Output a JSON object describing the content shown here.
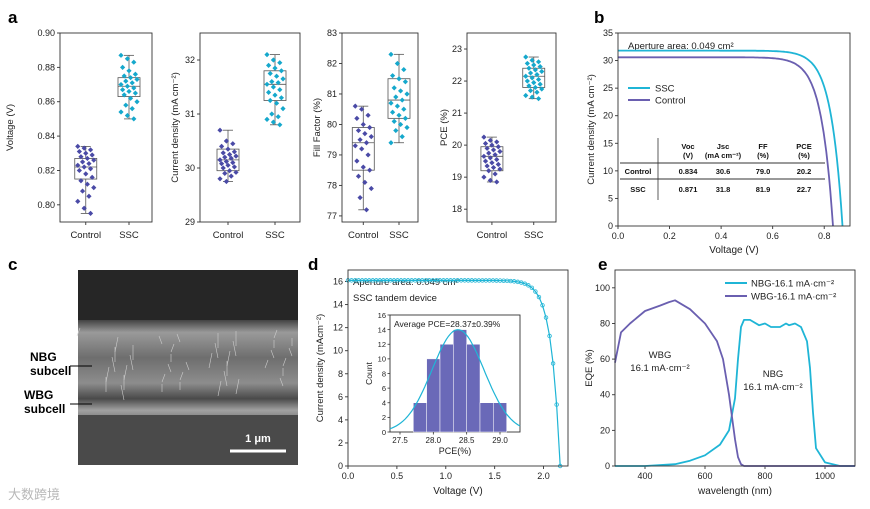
{
  "panel_labels": {
    "a": "a",
    "b": "b",
    "c": "c",
    "d": "d",
    "e": "e"
  },
  "watermark": "大数跨境",
  "chart_data": [
    {
      "id": "a1",
      "type": "box",
      "ylabel": "Voltage (V)",
      "categories": [
        "Control",
        "SSC"
      ],
      "ylim": [
        0.79,
        0.9
      ],
      "yticks": [
        0.8,
        0.82,
        0.84,
        0.86,
        0.88,
        0.9
      ],
      "ytick_labels": [
        "0.80",
        "0.82",
        "0.84",
        "0.86",
        "0.88",
        "0.90"
      ],
      "boxes": [
        {
          "q1": 0.815,
          "median": 0.822,
          "q3": 0.827,
          "wlo": 0.795,
          "whi": 0.834
        },
        {
          "q1": 0.863,
          "median": 0.869,
          "q3": 0.874,
          "wlo": 0.85,
          "whi": 0.887
        }
      ],
      "points": [
        [
          0.834,
          0.833,
          0.832,
          0.831,
          0.83,
          0.829,
          0.828,
          0.827,
          0.826,
          0.825,
          0.824,
          0.823,
          0.822,
          0.821,
          0.82,
          0.818,
          0.816,
          0.814,
          0.812,
          0.81,
          0.808,
          0.805,
          0.802,
          0.798,
          0.795
        ],
        [
          0.887,
          0.885,
          0.883,
          0.88,
          0.878,
          0.876,
          0.875,
          0.874,
          0.873,
          0.872,
          0.871,
          0.87,
          0.869,
          0.868,
          0.867,
          0.866,
          0.865,
          0.864,
          0.862,
          0.86,
          0.858,
          0.856,
          0.854,
          0.852,
          0.85
        ]
      ]
    },
    {
      "id": "a2",
      "type": "box",
      "ylabel": "Current density (mA cm⁻²)",
      "categories": [
        "Control",
        "SSC"
      ],
      "ylim": [
        29,
        32.5
      ],
      "yticks": [
        29,
        30,
        31,
        32
      ],
      "ytick_labels": [
        "29",
        "30",
        "31",
        "32"
      ],
      "boxes": [
        {
          "q1": 29.95,
          "median": 30.15,
          "q3": 30.35,
          "wlo": 29.75,
          "whi": 30.7
        },
        {
          "q1": 31.25,
          "median": 31.55,
          "q3": 31.8,
          "wlo": 30.8,
          "whi": 32.1
        }
      ],
      "points": [
        [
          30.7,
          30.5,
          30.45,
          30.4,
          30.35,
          30.3,
          30.28,
          30.25,
          30.22,
          30.2,
          30.18,
          30.15,
          30.12,
          30.1,
          30.08,
          30.05,
          30.02,
          30.0,
          29.95,
          29.92,
          29.9,
          29.85,
          29.8,
          29.75
        ],
        [
          32.1,
          32.0,
          31.95,
          31.9,
          31.85,
          31.8,
          31.75,
          31.7,
          31.65,
          31.6,
          31.58,
          31.55,
          31.5,
          31.45,
          31.4,
          31.35,
          31.3,
          31.25,
          31.2,
          31.1,
          31.0,
          30.95,
          30.9,
          30.85,
          30.8
        ]
      ]
    },
    {
      "id": "a3",
      "type": "box",
      "ylabel": "Fill Factor (%)",
      "categories": [
        "Control",
        "SSC"
      ],
      "ylim": [
        76.8,
        83
      ],
      "yticks": [
        77,
        78,
        79,
        80,
        81,
        82,
        83
      ],
      "ytick_labels": [
        "77",
        "78",
        "79",
        "80",
        "81",
        "82",
        "83"
      ],
      "boxes": [
        {
          "q1": 78.5,
          "median": 79.4,
          "q3": 79.9,
          "wlo": 77.2,
          "whi": 80.6
        },
        {
          "q1": 80.2,
          "median": 80.8,
          "q3": 81.5,
          "wlo": 79.4,
          "whi": 82.3
        }
      ],
      "points": [
        [
          80.6,
          80.5,
          80.3,
          80.2,
          80.0,
          79.9,
          79.8,
          79.7,
          79.6,
          79.5,
          79.4,
          79.3,
          79.2,
          79.0,
          78.8,
          78.6,
          78.5,
          78.3,
          78.1,
          77.9,
          77.6,
          77.2
        ],
        [
          82.3,
          82.0,
          81.8,
          81.6,
          81.5,
          81.4,
          81.2,
          81.1,
          81.0,
          80.9,
          80.8,
          80.7,
          80.6,
          80.5,
          80.4,
          80.3,
          80.2,
          80.1,
          80.0,
          79.9,
          79.8,
          79.6,
          79.4
        ]
      ]
    },
    {
      "id": "a4",
      "type": "box",
      "ylabel": "PCE (%)",
      "categories": [
        "Control",
        "SSC"
      ],
      "ylim": [
        17.6,
        23.5
      ],
      "yticks": [
        18,
        19,
        20,
        21,
        22,
        23
      ],
      "ytick_labels": [
        "18",
        "19",
        "20",
        "21",
        "22",
        "23"
      ],
      "boxes": [
        {
          "q1": 19.2,
          "median": 19.65,
          "q3": 19.95,
          "wlo": 18.85,
          "whi": 20.25
        },
        {
          "q1": 21.8,
          "median": 22.15,
          "q3": 22.4,
          "wlo": 21.45,
          "whi": 22.75
        }
      ],
      "points": [
        [
          20.25,
          20.15,
          20.1,
          20.05,
          20.0,
          19.95,
          19.9,
          19.85,
          19.8,
          19.75,
          19.7,
          19.65,
          19.6,
          19.55,
          19.5,
          19.45,
          19.4,
          19.35,
          19.3,
          19.25,
          19.2,
          19.1,
          19.0,
          18.9,
          18.85
        ],
        [
          22.75,
          22.65,
          22.6,
          22.55,
          22.5,
          22.45,
          22.4,
          22.35,
          22.3,
          22.25,
          22.2,
          22.15,
          22.1,
          22.05,
          22.0,
          21.95,
          21.9,
          21.85,
          21.8,
          21.75,
          21.7,
          21.65,
          21.55,
          21.5,
          21.45
        ]
      ]
    },
    {
      "id": "b",
      "type": "line",
      "xlabel": "Voltage (V)",
      "ylabel": "Current density (mA cm⁻²)",
      "xlim": [
        0,
        0.9
      ],
      "ylim": [
        0,
        35
      ],
      "xticks": [
        0.0,
        0.2,
        0.4,
        0.6,
        0.8
      ],
      "xtick_labels": [
        "0.0",
        "0.2",
        "0.4",
        "0.6",
        "0.8"
      ],
      "yticks": [
        0,
        5,
        10,
        15,
        20,
        25,
        30,
        35
      ],
      "ytick_labels": [
        "0",
        "5",
        "10",
        "15",
        "20",
        "25",
        "30",
        "35"
      ],
      "annotation": "Aperture area: 0.049 cm²",
      "series": [
        {
          "name": "SSC",
          "color": "#1fb5d6",
          "jsc": 31.8,
          "voc": 0.871
        },
        {
          "name": "Control",
          "color": "#6a5fb0",
          "jsc": 30.6,
          "voc": 0.834
        }
      ],
      "table": {
        "headers": [
          "",
          "Voc\n(V)",
          "Jsc\n(mA cm⁻²)",
          "FF\n(%)",
          "PCE\n(%)"
        ],
        "rows": [
          [
            "Control",
            "0.834",
            "30.6",
            "79.0",
            "20.2"
          ],
          [
            "SSC",
            "0.871",
            "31.8",
            "81.9",
            "22.7"
          ]
        ]
      }
    },
    {
      "id": "d",
      "type": "line",
      "xlabel": "Voltage (V)",
      "ylabel": "Current density (mAcm⁻²)",
      "xlim": [
        0,
        2.25
      ],
      "ylim": [
        0,
        17
      ],
      "xticks": [
        0.0,
        0.5,
        1.0,
        1.5,
        2.0
      ],
      "xtick_labels": [
        "0.0",
        "0.5",
        "1.0",
        "1.5",
        "2.0"
      ],
      "yticks": [
        0,
        2,
        4,
        6,
        8,
        10,
        12,
        14,
        16
      ],
      "ytick_labels": [
        "0",
        "2",
        "4",
        "6",
        "8",
        "10",
        "12",
        "14",
        "16"
      ],
      "annotations": [
        "Aperture area: 0.049 cm²",
        "SSC tandem device"
      ],
      "series": [
        {
          "name": "SSC tandem",
          "color": "#1fb5d6",
          "jsc": 16.1,
          "voc": 2.17
        }
      ],
      "inset": {
        "type": "histogram",
        "xlabel": "PCE(%)",
        "ylabel": "Count",
        "title": "Average PCE=28.37±0.39%",
        "bins": [
          27.8,
          28.0,
          28.2,
          28.4,
          28.6,
          28.8,
          29.0
        ],
        "counts": [
          4,
          10,
          12,
          14,
          12,
          4,
          4
        ],
        "xlim": [
          27.35,
          29.3
        ],
        "ylim": [
          0,
          16
        ],
        "xticks": [
          27.5,
          28.0,
          28.5,
          29.0
        ],
        "xtick_labels": [
          "27.5",
          "28.0",
          "28.5",
          "29.0"
        ],
        "yticks": [
          0,
          2,
          4,
          6,
          8,
          10,
          12,
          14,
          16
        ],
        "ytick_labels": [
          "0",
          "2",
          "4",
          "6",
          "8",
          "10",
          "12",
          "14",
          "16"
        ],
        "fit_mean": 28.37,
        "fit_sd": 0.39,
        "fit_peak": 14
      }
    },
    {
      "id": "e",
      "type": "line",
      "xlabel": "wavelength (nm)",
      "ylabel": "EQE (%)",
      "xlim": [
        300,
        1100
      ],
      "ylim": [
        0,
        110
      ],
      "xticks": [
        400,
        600,
        800,
        1000
      ],
      "xtick_labels": [
        "400",
        "600",
        "800",
        "1000"
      ],
      "yticks": [
        0,
        20,
        40,
        60,
        80,
        100
      ],
      "ytick_labels": [
        "0",
        "20",
        "40",
        "60",
        "80",
        "100"
      ],
      "series": [
        {
          "name": "NBG-16.1 mA·cm⁻²",
          "color": "#1fb5d6",
          "x": [
            300,
            400,
            500,
            550,
            600,
            650,
            680,
            700,
            710,
            720,
            730,
            750,
            780,
            800,
            820,
            850,
            870,
            880,
            900,
            920,
            940,
            950,
            960,
            970,
            1000,
            1050,
            1100
          ],
          "y": [
            0,
            0,
            1,
            3,
            6,
            12,
            20,
            38,
            60,
            78,
            82,
            82,
            79,
            80,
            78,
            78,
            80,
            79,
            80,
            78,
            70,
            55,
            30,
            10,
            2,
            0,
            0
          ]
        },
        {
          "name": "WBG-16.1 mA·cm⁻²",
          "color": "#6a5fb0",
          "x": [
            300,
            320,
            350,
            400,
            450,
            480,
            500,
            550,
            600,
            640,
            660,
            680,
            700,
            710,
            720,
            730,
            750,
            800,
            900,
            1100
          ],
          "y": [
            58,
            75,
            80,
            87,
            90,
            92,
            93,
            88,
            80,
            70,
            60,
            40,
            15,
            5,
            1,
            0,
            0,
            0,
            0,
            0
          ]
        }
      ],
      "labels": [
        "WBG",
        "16.1 mA·cm⁻²",
        "NBG",
        "16.1 mA·cm⁻²"
      ]
    }
  ],
  "sem": {
    "label_nbg": "NBG",
    "label_nbg2": "subcell",
    "label_wbg": "WBG",
    "label_wbg2": "subcell",
    "scale_bar": "1 μm"
  }
}
